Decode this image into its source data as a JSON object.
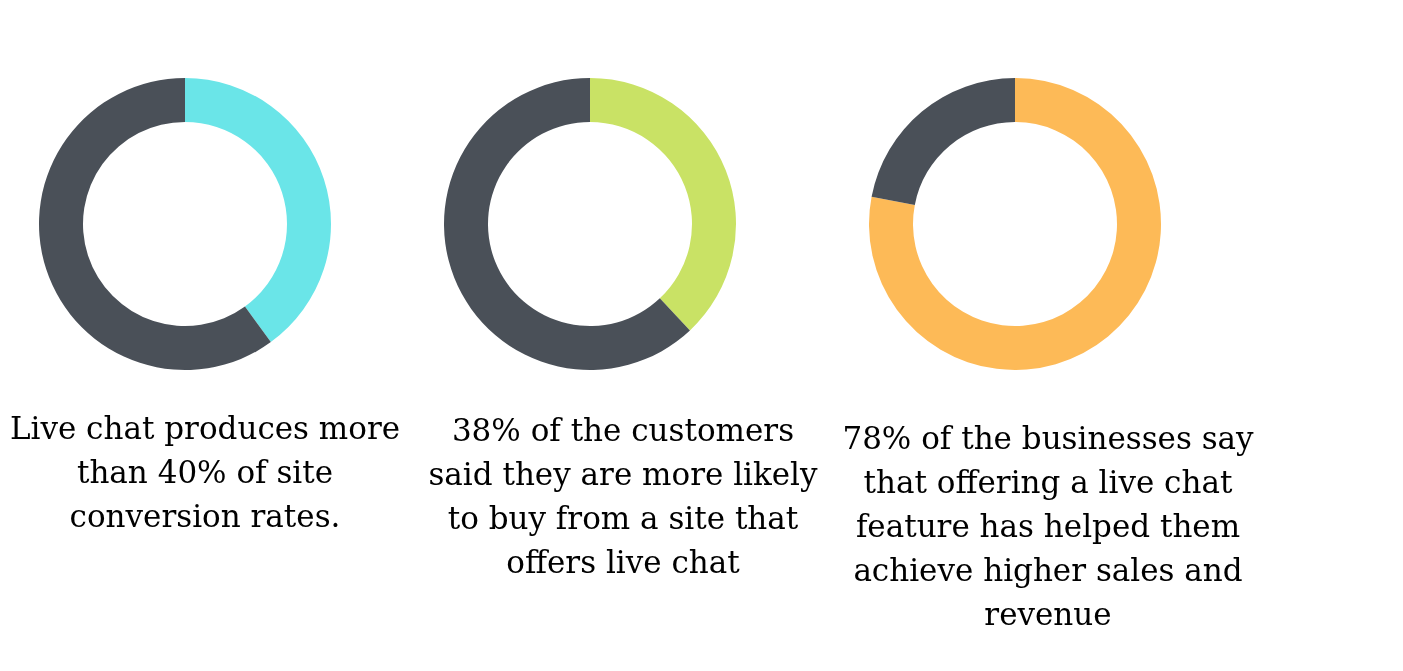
{
  "chart_data": [
    {
      "type": "donut",
      "categories": [
        null,
        null
      ],
      "values": [
        40,
        60
      ],
      "colors": [
        "#6ae5e8",
        "#4a5058"
      ],
      "annotations": [
        "Live chat produces more than 40% of site conversion rates."
      ]
    },
    {
      "type": "donut",
      "categories": [
        null,
        null
      ],
      "values": [
        38,
        62
      ],
      "colors": [
        "#c9e265",
        "#4a5058"
      ],
      "annotations": [
        "38% of the customers",
        "said they are more likely to buy from a site that offers live chat"
      ]
    },
    {
      "type": "donut",
      "categories": [
        null,
        null
      ],
      "values": [
        78,
        22
      ],
      "colors": [
        "#fdba57",
        "#4a5058"
      ],
      "annotations": [
        "78% of the businesses say that offering a live chat feature has helped them achieve higher sales and revenue"
      ]
    }
  ]
}
